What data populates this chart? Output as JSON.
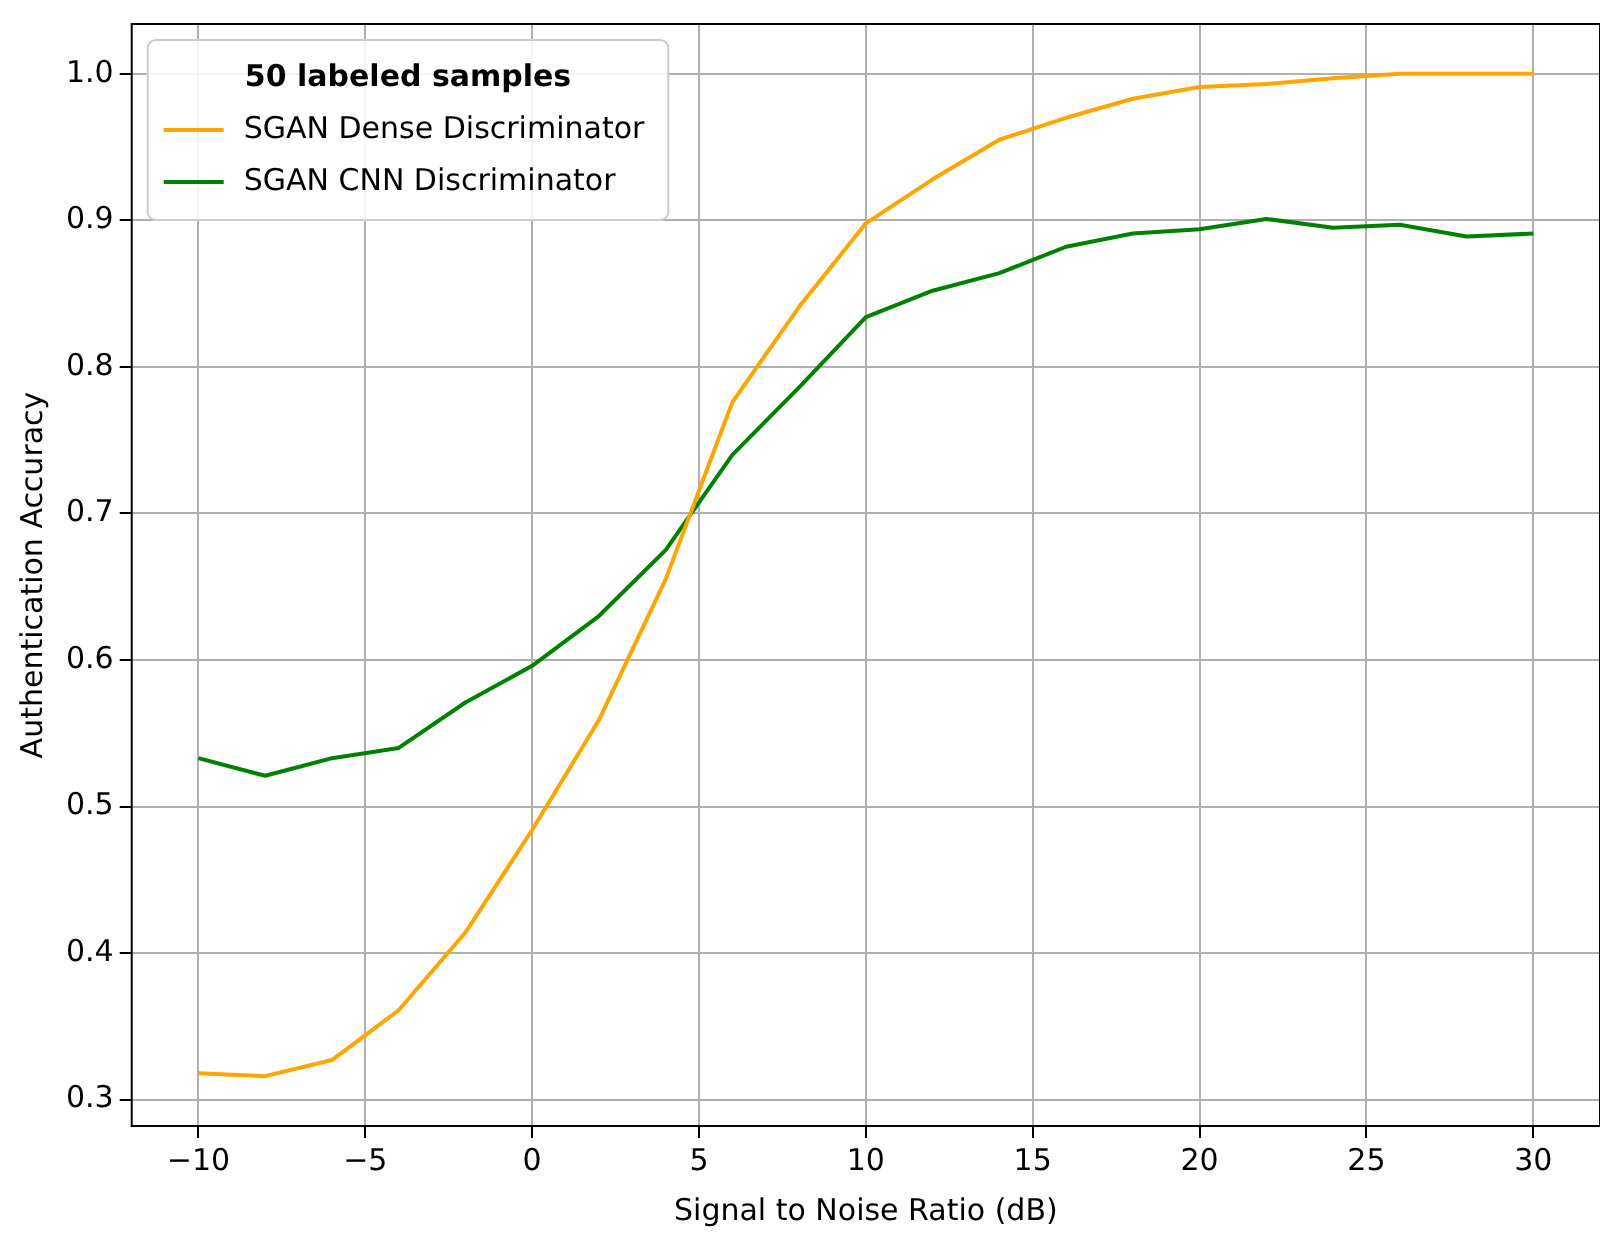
{
  "chart_data": {
    "type": "line",
    "xlabel": "Signal to Noise Ratio (dB)",
    "ylabel": "Authentication Accuracy",
    "legend_title": "50 labeled samples",
    "legend": "top left",
    "grid": true,
    "marker": "none",
    "line_style": "solid",
    "x": [
      -10,
      -8,
      -6,
      -4,
      -2,
      0,
      2,
      4,
      6,
      8,
      10,
      12,
      14,
      16,
      18,
      20,
      22,
      24,
      26,
      28,
      30
    ],
    "series": [
      {
        "name": "SGAN Dense Discriminator",
        "color": "#ffa500",
        "values": [
          0.318,
          0.316,
          0.327,
          0.361,
          0.414,
          0.484,
          0.559,
          0.655,
          0.776,
          0.841,
          0.898,
          0.928,
          0.955,
          0.97,
          0.983,
          0.991,
          0.993,
          0.997,
          1.0,
          1.0,
          1.0
        ]
      },
      {
        "name": "SGAN CNN Discriminator",
        "color": "#008000",
        "values": [
          0.533,
          0.521,
          0.533,
          0.54,
          0.571,
          0.596,
          0.63,
          0.675,
          0.74,
          0.786,
          0.834,
          0.852,
          0.864,
          0.882,
          0.891,
          0.894,
          0.901,
          0.895,
          0.897,
          0.889,
          0.891
        ]
      }
    ],
    "xlim": [
      -12,
      32
    ],
    "xticks": [
      {
        "value": -10,
        "label": "−10"
      },
      {
        "value": -5,
        "label": "−5"
      },
      0,
      5,
      10,
      15,
      20,
      25,
      30
    ],
    "ylim": [
      0.282,
      1.034
    ],
    "yticks": [
      {
        "value": 0.3,
        "label": "0.3"
      },
      {
        "value": 0.4,
        "label": "0.4"
      },
      {
        "value": 0.5,
        "label": "0.5"
      },
      {
        "value": 0.6,
        "label": "0.6"
      },
      {
        "value": 0.7,
        "label": "0.7"
      },
      {
        "value": 0.8,
        "label": "0.8"
      },
      {
        "value": 0.9,
        "label": "0.9"
      },
      {
        "value": 1.0,
        "label": "1.0"
      }
    ]
  }
}
